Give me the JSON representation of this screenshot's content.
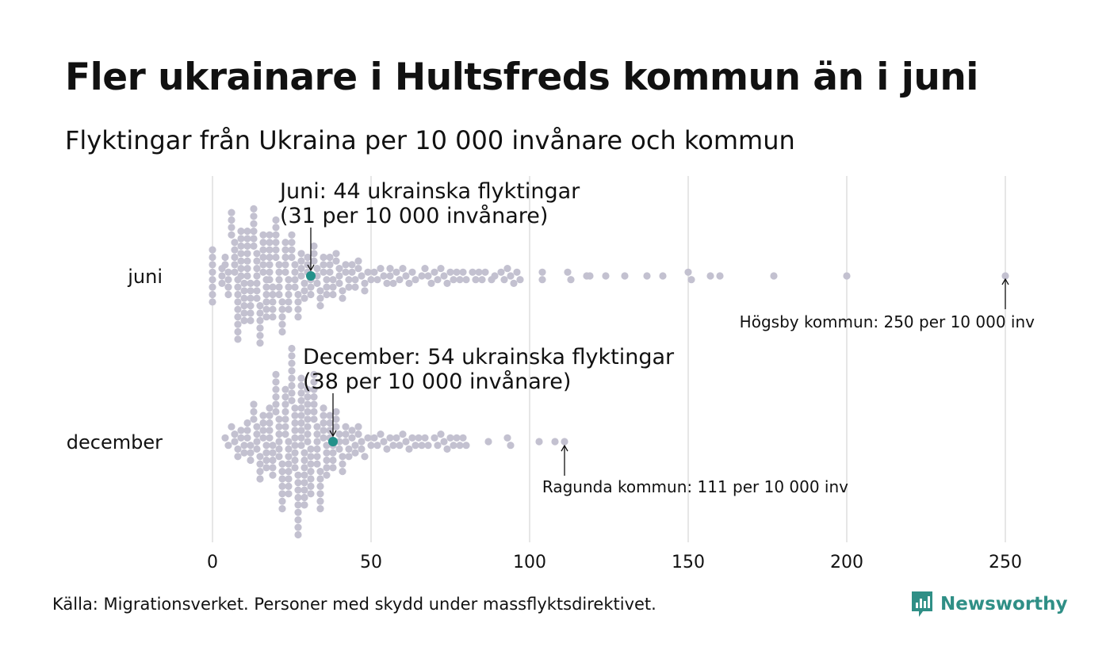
{
  "title": "Fler ukrainare i Hultsfreds kommun än i juni",
  "subtitle": "Flyktingar från Ukraina per 10 000 invånare och kommun",
  "source": "Källa: Migrationsverket. Personer med skydd under massflyktsdirektivet.",
  "logo_text": "Newsworthy",
  "colors": {
    "dot": "#c3c1d0",
    "highlight": "#23918a",
    "grid": "#d6d6d6",
    "brand": "#2f8f86"
  },
  "chart_data": {
    "type": "scatter",
    "subtype": "beeswarm",
    "xlim": [
      0,
      250
    ],
    "xticks": [
      "0",
      "50",
      "100",
      "150",
      "200",
      "250"
    ],
    "xtick_values": [
      0,
      50,
      100,
      150,
      200,
      250
    ],
    "grid": "vertical",
    "categories": [
      "juni",
      "december"
    ],
    "series": [
      {
        "category": "juni",
        "highlight_value": 31,
        "values": [
          0,
          0,
          0,
          0,
          0,
          0,
          0,
          0,
          3,
          3,
          3,
          4,
          4,
          5,
          5,
          5,
          5,
          6,
          6,
          6,
          6,
          7,
          7,
          7,
          7,
          7,
          8,
          8,
          8,
          8,
          8,
          8,
          8,
          8,
          8,
          9,
          9,
          9,
          9,
          9,
          9,
          9,
          10,
          10,
          10,
          10,
          10,
          10,
          11,
          11,
          11,
          11,
          11,
          11,
          11,
          12,
          12,
          12,
          12,
          12,
          12,
          13,
          13,
          13,
          13,
          13,
          13,
          14,
          14,
          14,
          14,
          14,
          14,
          14,
          15,
          15,
          15,
          15,
          15,
          15,
          16,
          16,
          16,
          16,
          16,
          16,
          17,
          17,
          17,
          17,
          17,
          17,
          18,
          18,
          18,
          18,
          18,
          18,
          18,
          19,
          19,
          19,
          19,
          19,
          20,
          20,
          20,
          20,
          20,
          20,
          21,
          21,
          21,
          21,
          21,
          22,
          22,
          22,
          22,
          22,
          23,
          23,
          23,
          23,
          23,
          24,
          24,
          24,
          24,
          24,
          25,
          25,
          25,
          25,
          26,
          26,
          26,
          26,
          27,
          27,
          27,
          27,
          28,
          28,
          28,
          28,
          29,
          29,
          29,
          30,
          30,
          30,
          31,
          31,
          31,
          32,
          32,
          32,
          33,
          33,
          33,
          34,
          34,
          34,
          35,
          35,
          35,
          36,
          36,
          36,
          37,
          37,
          37,
          38,
          38,
          38,
          39,
          39,
          40,
          40,
          40,
          41,
          41,
          42,
          42,
          43,
          43,
          44,
          44,
          45,
          45,
          46,
          46,
          47,
          48,
          48,
          49,
          50,
          51,
          52,
          53,
          54,
          55,
          56,
          56,
          57,
          58,
          59,
          60,
          61,
          62,
          63,
          64,
          66,
          67,
          68,
          69,
          70,
          71,
          72,
          73,
          74,
          75,
          76,
          77,
          78,
          79,
          80,
          82,
          83,
          84,
          85,
          86,
          88,
          89,
          91,
          92,
          93,
          94,
          95,
          96,
          97,
          104,
          104,
          112,
          113,
          118,
          119,
          124,
          130,
          137,
          142,
          150,
          151,
          157,
          160,
          177,
          200,
          250
        ],
        "annotation": [
          "Juni: 44 ukrainska flyktingar",
          "(31 per 10 000 invånare)"
        ],
        "extreme_label": "Högsby kommun: 250 per 10 000 inv",
        "extreme_value": 250
      },
      {
        "category": "december",
        "highlight_value": 38,
        "values": [
          4,
          5,
          6,
          7,
          7,
          8,
          8,
          9,
          9,
          10,
          10,
          11,
          11,
          11,
          12,
          12,
          12,
          13,
          13,
          13,
          14,
          14,
          14,
          14,
          15,
          15,
          15,
          15,
          16,
          16,
          16,
          16,
          17,
          17,
          17,
          17,
          18,
          18,
          18,
          18,
          18,
          19,
          19,
          19,
          19,
          19,
          20,
          20,
          20,
          20,
          20,
          20,
          21,
          21,
          21,
          21,
          21,
          21,
          22,
          22,
          22,
          22,
          22,
          22,
          22,
          23,
          23,
          23,
          23,
          23,
          23,
          23,
          24,
          24,
          24,
          24,
          24,
          24,
          24,
          24,
          25,
          25,
          25,
          25,
          25,
          25,
          25,
          25,
          26,
          26,
          26,
          26,
          26,
          26,
          26,
          26,
          26,
          27,
          27,
          27,
          27,
          27,
          27,
          27,
          27,
          27,
          28,
          28,
          28,
          28,
          28,
          28,
          28,
          28,
          28,
          28,
          29,
          29,
          29,
          29,
          29,
          29,
          29,
          29,
          30,
          30,
          30,
          30,
          30,
          30,
          30,
          30,
          31,
          31,
          31,
          31,
          31,
          31,
          31,
          32,
          32,
          32,
          32,
          32,
          32,
          32,
          33,
          33,
          33,
          33,
          33,
          33,
          34,
          34,
          34,
          34,
          34,
          34,
          35,
          35,
          35,
          35,
          35,
          36,
          36,
          36,
          36,
          36,
          37,
          37,
          37,
          37,
          38,
          38,
          38,
          38,
          39,
          39,
          39,
          40,
          40,
          40,
          41,
          41,
          41,
          42,
          42,
          42,
          43,
          43,
          44,
          44,
          45,
          45,
          46,
          46,
          47,
          47,
          48,
          49,
          50,
          51,
          52,
          53,
          54,
          55,
          56,
          57,
          58,
          59,
          60,
          61,
          62,
          63,
          64,
          65,
          66,
          67,
          68,
          70,
          71,
          72,
          73,
          74,
          75,
          76,
          77,
          78,
          79,
          80,
          87,
          93,
          94,
          103,
          108,
          111
        ],
        "annotation": [
          "December: 54 ukrainska flyktingar",
          "(38 per 10 000 invånare)"
        ],
        "extreme_label": "Ragunda kommun: 111 per 10 000 inv",
        "extreme_value": 111
      }
    ]
  }
}
